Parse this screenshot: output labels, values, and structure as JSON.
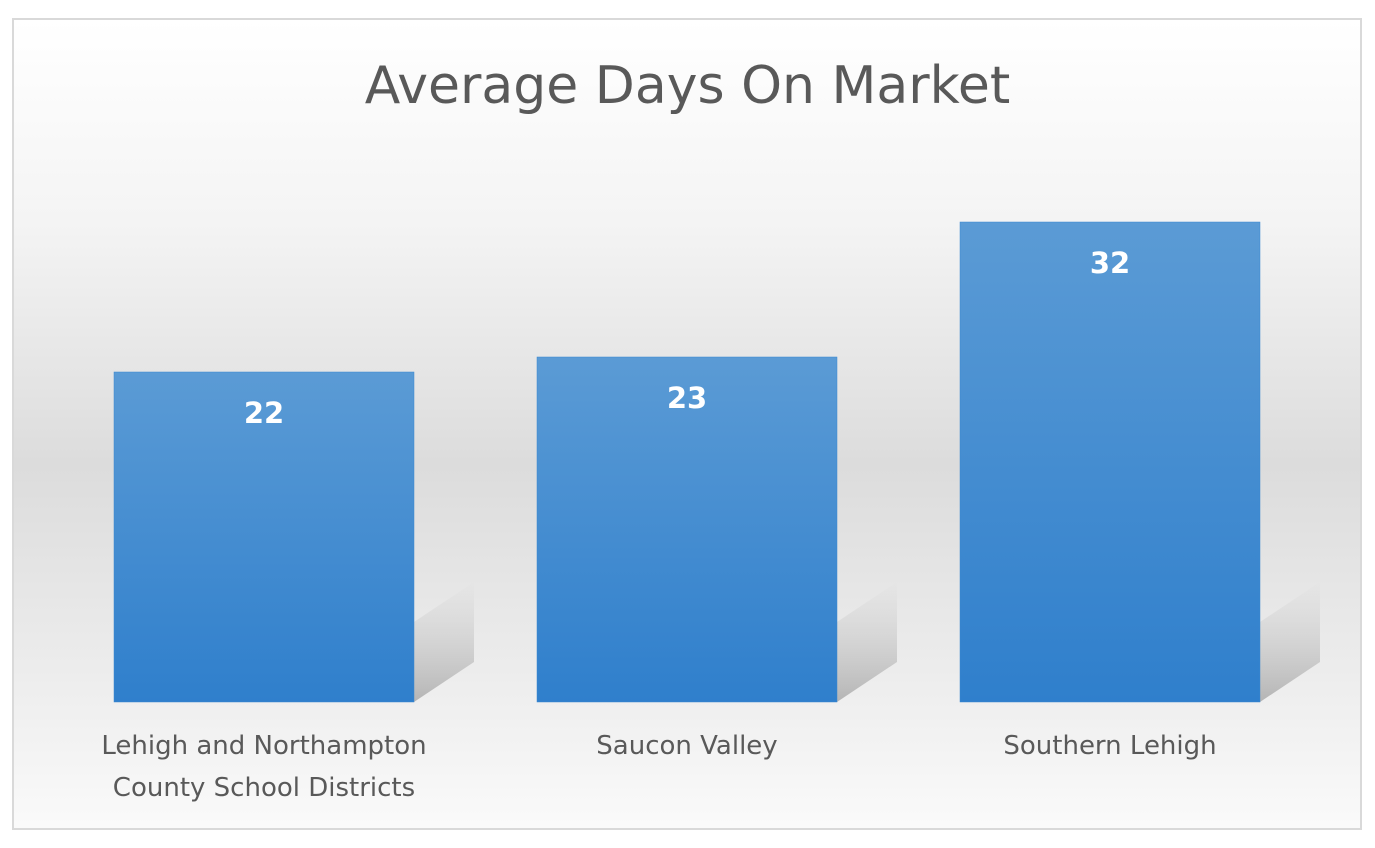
{
  "chart_data": {
    "type": "bar",
    "title": "Average Days On Market",
    "categories": [
      "Lehigh and Northampton County School Districts",
      "Saucon Valley",
      "Southern Lehigh"
    ],
    "values": [
      22,
      23,
      32
    ],
    "color": "#3b88d0"
  }
}
